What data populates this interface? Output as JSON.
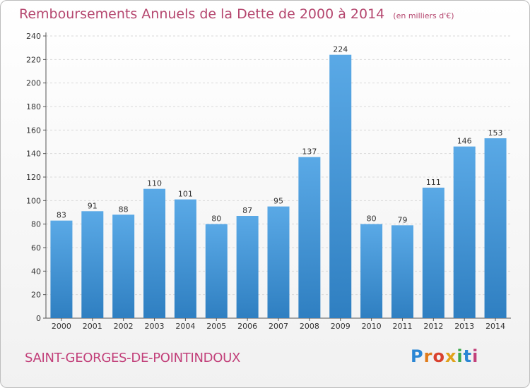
{
  "header": {
    "title": "Remboursements Annuels de la Dette de 2000 à 2014",
    "unit": "(en milliers d'€)"
  },
  "footer": {
    "town": "SAINT-GEORGES-DE-POINTINDOUX",
    "logo": "Proxiti"
  },
  "colors": {
    "bar_top": "#5aa9e6",
    "bar_bottom": "#2f7fc1",
    "title": "#b5476f",
    "town": "#c2407a",
    "grid": "#d9d9d9"
  },
  "chart_data": {
    "type": "bar",
    "categories": [
      "2000",
      "2001",
      "2002",
      "2003",
      "2004",
      "2005",
      "2006",
      "2007",
      "2008",
      "2009",
      "2010",
      "2011",
      "2012",
      "2013",
      "2014"
    ],
    "values": [
      83,
      91,
      88,
      110,
      101,
      80,
      87,
      95,
      137,
      224,
      80,
      79,
      111,
      146,
      153
    ],
    "title": "Remboursements Annuels de la Dette de 2000 à 2014",
    "ylim": [
      0,
      240
    ],
    "yticks": [
      0,
      20,
      40,
      60,
      80,
      100,
      120,
      140,
      160,
      180,
      200,
      220,
      240
    ],
    "grid": true
  }
}
